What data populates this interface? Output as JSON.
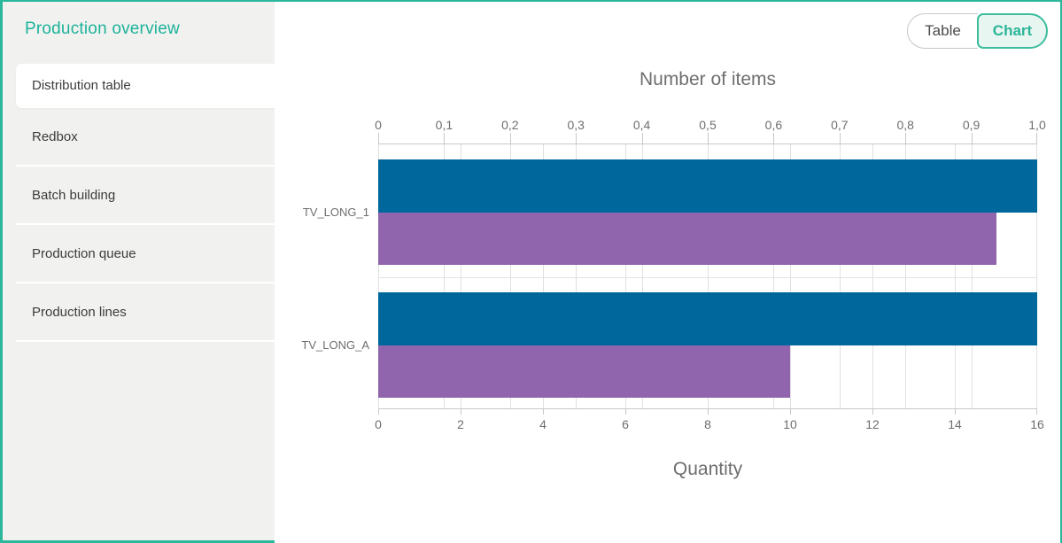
{
  "colors": {
    "accent_teal": "#2bb79b",
    "accent_light_bg": "#e7f6f1",
    "sidebar_bg": "#f1f2f0",
    "bar_blue": "#00679d",
    "bar_purple": "#9065ae",
    "chart_text_gray": "#6e6e6e"
  },
  "sidebar": {
    "title": "Production overview",
    "items": [
      {
        "label": "Distribution table",
        "active": true
      },
      {
        "label": "Redbox",
        "active": false
      },
      {
        "label": "Batch building",
        "active": false
      },
      {
        "label": "Production queue",
        "active": false
      },
      {
        "label": "Production lines",
        "active": false
      }
    ]
  },
  "view_toggle": {
    "options": [
      {
        "label": "Table",
        "selected": false
      },
      {
        "label": "Chart",
        "selected": true
      }
    ]
  },
  "chart_data": {
    "type": "bar",
    "orientation": "horizontal",
    "title": "Number of items",
    "grid": true,
    "legend": false,
    "categories": [
      "TV_LONG_1",
      "TV_LONG_A"
    ],
    "series": [
      {
        "name": "blue-series",
        "color": "#00679d",
        "values": [
          16,
          16
        ]
      },
      {
        "name": "purple-series",
        "color": "#9065ae",
        "values": [
          15,
          10
        ]
      }
    ],
    "top_axis": {
      "min": 0,
      "max": 1.0,
      "tick_labels": [
        "0",
        "0,1",
        "0,2",
        "0,3",
        "0,4",
        "0,5",
        "0,6",
        "0,7",
        "0,8",
        "0,9",
        "1,0"
      ]
    },
    "bottom_axis": {
      "title": "Quantity",
      "min": 0,
      "max": 16,
      "tick_labels": [
        "0",
        "2",
        "4",
        "6",
        "8",
        "10",
        "12",
        "14",
        "16"
      ]
    }
  }
}
